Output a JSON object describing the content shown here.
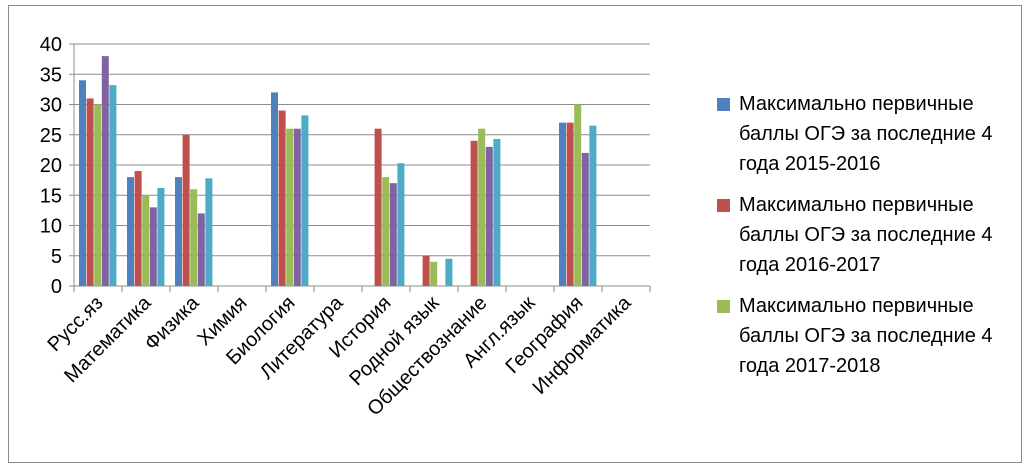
{
  "chart_data": {
    "type": "bar",
    "categories": [
      "Русс.яз",
      "Математика",
      "Физика",
      "Химия",
      "Биология",
      "Литература",
      "История",
      "Родной язык",
      "Обществознание",
      "Англ.язык",
      "География",
      "Информатика"
    ],
    "yticks": [
      "0",
      "5",
      "10",
      "15",
      "20",
      "25",
      "30",
      "35",
      "40"
    ],
    "ylim": [
      0,
      40
    ],
    "grid": true,
    "legend_position": "right",
    "series": [
      {
        "name": "Максимально первичные баллы  ОГЭ за последние 4 года 2015-2016",
        "color": "#4f81bd",
        "values": [
          34,
          18,
          18,
          null,
          32,
          null,
          null,
          null,
          null,
          null,
          27,
          null
        ]
      },
      {
        "name": "Максимально первичные баллы  ОГЭ за последние 4 года 2016-2017",
        "color": "#c0504d",
        "values": [
          31,
          19,
          25,
          null,
          29,
          null,
          26,
          5,
          24,
          null,
          27,
          null
        ]
      },
      {
        "name": "Максимально первичные баллы  ОГЭ за последние 4 года 2017-2018",
        "color": "#9bbb59",
        "values": [
          30,
          15,
          16,
          null,
          26,
          null,
          18,
          4,
          26,
          null,
          30,
          null
        ]
      },
      {
        "color": "#8064a2",
        "values": [
          38,
          13,
          12,
          null,
          26,
          null,
          17,
          null,
          23,
          null,
          22,
          null
        ]
      },
      {
        "color": "#4bacc6",
        "values": [
          33.2,
          16.2,
          17.8,
          null,
          28.2,
          null,
          20.3,
          4.5,
          24.3,
          null,
          26.5,
          null
        ]
      }
    ]
  },
  "legend": [
    {
      "line1": "Максимально первичные",
      "line2": "баллы  ОГЭ за последние 4",
      "line3": "года 2015-2016"
    },
    {
      "line1": "Максимально первичные",
      "line2": "баллы  ОГЭ за последние 4",
      "line3": "года 2016-2017"
    },
    {
      "line1": "Максимально первичные",
      "line2": "баллы  ОГЭ за последние 4",
      "line3": "года 2017-2018"
    }
  ]
}
